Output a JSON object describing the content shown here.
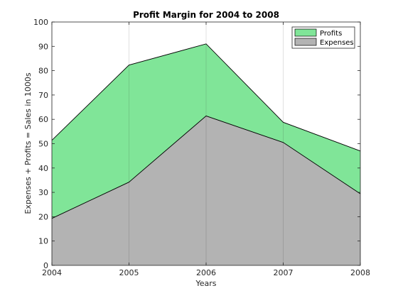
{
  "chart_data": {
    "type": "area",
    "title": "Profit Margin for 2004 to 2008",
    "xlabel": "Years",
    "ylabel": "Expenses + Profits = Sales in 1000s",
    "x": [
      2004,
      2005,
      2006,
      2007,
      2008
    ],
    "xlim": [
      2004,
      2008
    ],
    "ylim": [
      0,
      100
    ],
    "yticks": [
      0,
      10,
      20,
      30,
      40,
      50,
      60,
      70,
      80,
      90,
      100
    ],
    "stacked": true,
    "grid": "vertical",
    "legend_position": "top-right",
    "series": [
      {
        "name": "Expenses",
        "values": [
          19.3,
          34.2,
          61.4,
          50.5,
          29.4
        ],
        "color": "#b3b3b3"
      },
      {
        "name": "Profits",
        "values": [
          32.1,
          48.1,
          29.6,
          8.3,
          17.6
        ],
        "color": "#80e598"
      }
    ]
  }
}
